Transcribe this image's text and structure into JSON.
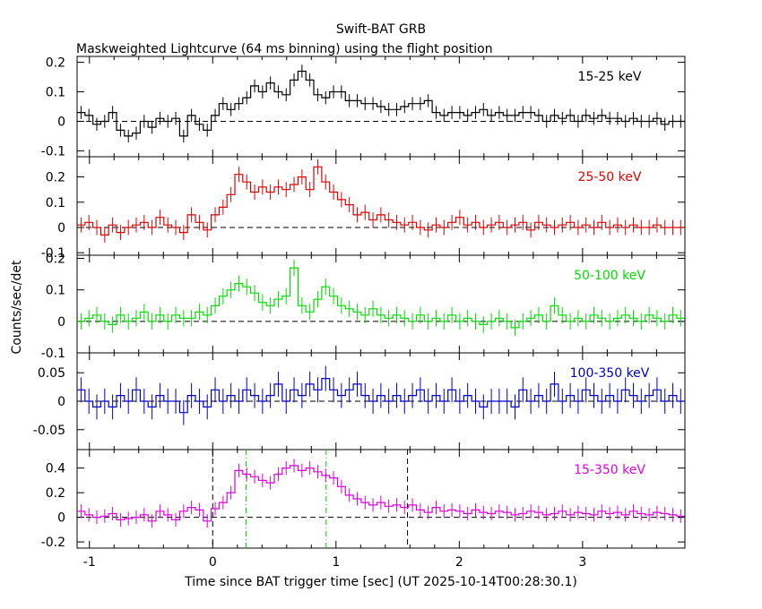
{
  "chart_data": {
    "type": "line",
    "title": "Swift-BAT GRB",
    "subtitle": "Maskweighted Lightcurve (64 ms binning) using the flight position",
    "xlabel": "Time since BAT trigger time [sec] (UT 2025-10-14T00:28:30.1)",
    "ylabel": "Counts/sec/det",
    "xlim": [
      -1.1,
      3.83
    ],
    "x_ticks": [
      -1,
      0,
      1,
      2,
      3
    ],
    "vlines_black": [
      0.0,
      1.58
    ],
    "vlines_green": [
      0.27,
      0.92
    ],
    "bin_width": 0.064,
    "x_start": -1.1,
    "panels": [
      {
        "band": "15-25 keV",
        "color": "#000000",
        "ylim": [
          -0.12,
          0.22
        ],
        "yticks": [
          -0.1,
          0,
          0.1,
          0.2
        ],
        "tick_labels": [
          "-0.1",
          "0",
          "0.1",
          "0.2"
        ],
        "err": 0.022,
        "values": [
          0.03,
          0.02,
          -0.01,
          0.0,
          0.03,
          -0.03,
          -0.05,
          -0.04,
          0.0,
          -0.02,
          0.01,
          0.0,
          0.01,
          -0.05,
          0.02,
          -0.01,
          -0.03,
          0.02,
          0.06,
          0.04,
          0.06,
          0.08,
          0.12,
          0.1,
          0.13,
          0.1,
          0.09,
          0.14,
          0.17,
          0.14,
          0.09,
          0.08,
          0.1,
          0.1,
          0.07,
          0.07,
          0.06,
          0.06,
          0.05,
          0.04,
          0.04,
          0.05,
          0.06,
          0.06,
          0.07,
          0.03,
          0.02,
          0.03,
          0.03,
          0.02,
          0.03,
          0.04,
          0.02,
          0.03,
          0.02,
          0.02,
          0.03,
          0.03,
          0.02,
          0.0,
          0.02,
          0.01,
          0.02,
          0.0,
          0.02,
          0.01,
          0.02,
          0.01,
          0.01,
          0.0,
          0.01,
          0.0,
          0.0,
          0.01,
          -0.01,
          0.0,
          0.0
        ]
      },
      {
        "band": "25-50 keV",
        "color": "#e00000",
        "ylim": [
          -0.11,
          0.28
        ],
        "yticks": [
          -0.1,
          0,
          0.1,
          0.2
        ],
        "tick_labels": [
          "-0.1",
          "0",
          "0.1",
          "0.2"
        ],
        "err": 0.03,
        "values": [
          0.01,
          0.02,
          0.0,
          -0.03,
          0.01,
          -0.02,
          0.0,
          0.01,
          0.02,
          0.0,
          0.04,
          0.01,
          0.0,
          -0.02,
          0.05,
          0.02,
          -0.01,
          0.05,
          0.08,
          0.13,
          0.21,
          0.18,
          0.14,
          0.16,
          0.14,
          0.16,
          0.15,
          0.17,
          0.2,
          0.15,
          0.24,
          0.18,
          0.14,
          0.11,
          0.09,
          0.05,
          0.06,
          0.03,
          0.05,
          0.03,
          0.02,
          0.01,
          0.02,
          0.0,
          -0.01,
          0.01,
          0.0,
          0.02,
          0.04,
          0.01,
          0.02,
          0.0,
          0.01,
          0.02,
          0.0,
          0.01,
          0.02,
          -0.01,
          0.02,
          0.01,
          0.0,
          0.01,
          0.02,
          0.0,
          0.01,
          0.0,
          0.02,
          0.0,
          0.01,
          0.0,
          0.01,
          0.0,
          0.0,
          0.01,
          0.0,
          0.0,
          0.0
        ]
      },
      {
        "band": "50-100 keV",
        "color": "#00dd00",
        "ylim": [
          -0.1,
          0.21
        ],
        "yticks": [
          -0.1,
          0,
          0.1,
          0.2
        ],
        "tick_labels": [
          "-0.1",
          "0",
          "0.1",
          "0.2"
        ],
        "err": 0.026,
        "values": [
          0.0,
          0.01,
          0.02,
          0.0,
          -0.01,
          0.02,
          0.0,
          0.01,
          0.03,
          0.0,
          0.02,
          0.0,
          0.02,
          0.01,
          0.01,
          0.03,
          0.02,
          0.05,
          0.08,
          0.1,
          0.12,
          0.11,
          0.09,
          0.06,
          0.05,
          0.07,
          0.08,
          0.17,
          0.05,
          0.03,
          0.07,
          0.11,
          0.08,
          0.05,
          0.04,
          0.03,
          0.02,
          0.04,
          0.02,
          0.01,
          0.02,
          0.01,
          0.0,
          0.02,
          0.0,
          0.01,
          0.0,
          0.02,
          0.0,
          0.01,
          0.0,
          -0.01,
          0.0,
          0.01,
          0.0,
          -0.02,
          0.0,
          0.01,
          0.02,
          0.0,
          0.05,
          0.02,
          0.0,
          0.01,
          0.0,
          0.02,
          0.01,
          0.0,
          0.01,
          0.02,
          0.01,
          0.0,
          0.02,
          0.01,
          0.0,
          0.02,
          0.01
        ]
      },
      {
        "band": "100-350 keV",
        "color": "#0000cc",
        "ylim": [
          -0.085,
          0.085
        ],
        "yticks": [
          -0.05,
          0,
          0.05
        ],
        "tick_labels": [
          "-0.05",
          "0",
          "0.05"
        ],
        "err": 0.022,
        "values": [
          0.02,
          0.0,
          -0.01,
          0.0,
          -0.01,
          0.01,
          0.0,
          0.02,
          0.0,
          -0.01,
          0.01,
          0.0,
          0.0,
          -0.02,
          0.01,
          0.0,
          -0.01,
          0.02,
          0.0,
          0.01,
          0.0,
          0.02,
          0.01,
          0.0,
          0.01,
          0.03,
          0.0,
          0.02,
          0.01,
          0.03,
          0.02,
          0.04,
          0.02,
          0.01,
          0.02,
          0.03,
          0.01,
          0.0,
          0.01,
          0.0,
          0.01,
          0.0,
          0.01,
          0.02,
          0.0,
          0.01,
          0.0,
          0.02,
          0.0,
          0.01,
          0.0,
          -0.01,
          0.0,
          0.0,
          0.0,
          -0.01,
          0.02,
          0.0,
          0.01,
          0.0,
          0.03,
          0.0,
          0.01,
          0.0,
          0.02,
          0.01,
          0.0,
          0.01,
          0.0,
          0.02,
          0.01,
          0.0,
          0.01,
          0.02,
          0.0,
          0.01,
          0.0
        ]
      },
      {
        "band": "15-350 keV",
        "color": "#dd00dd",
        "ylim": [
          -0.25,
          0.55
        ],
        "yticks": [
          -0.2,
          0,
          0.2,
          0.4
        ],
        "tick_labels": [
          "-0.2",
          "0",
          "0.2",
          "0.4"
        ],
        "err": 0.055,
        "values": [
          0.05,
          0.02,
          0.0,
          0.01,
          0.03,
          -0.02,
          -0.01,
          0.0,
          0.02,
          -0.03,
          0.05,
          0.02,
          -0.02,
          0.05,
          0.08,
          0.06,
          -0.03,
          0.07,
          0.12,
          0.2,
          0.38,
          0.35,
          0.33,
          0.3,
          0.28,
          0.35,
          0.4,
          0.42,
          0.38,
          0.4,
          0.37,
          0.34,
          0.32,
          0.25,
          0.18,
          0.15,
          0.12,
          0.1,
          0.12,
          0.09,
          0.1,
          0.08,
          0.1,
          0.06,
          0.04,
          0.08,
          0.05,
          0.06,
          0.05,
          0.03,
          0.06,
          0.04,
          0.03,
          0.05,
          0.04,
          0.02,
          0.03,
          0.05,
          0.04,
          0.02,
          0.03,
          0.05,
          0.02,
          0.04,
          0.03,
          0.02,
          0.05,
          0.03,
          0.04,
          0.02,
          0.05,
          0.03,
          0.02,
          0.04,
          0.03,
          0.02,
          0.01
        ]
      }
    ]
  }
}
